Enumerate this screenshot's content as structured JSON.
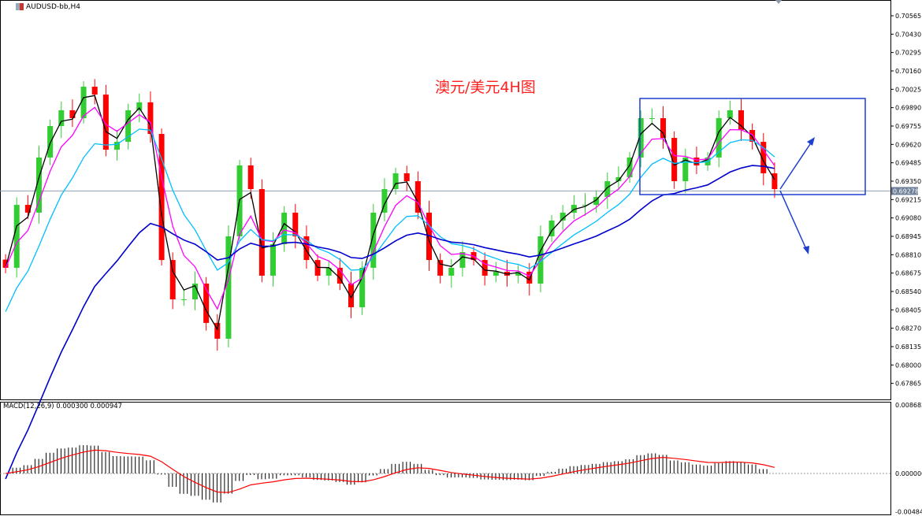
{
  "window": {
    "title": "AUDUSD-bb,H4",
    "icon": "chart-window-icon"
  },
  "annotation": "澳元/美元4H图",
  "colors": {
    "bull": "#32cd32",
    "bear": "#ff0000",
    "ma_fast": "#000000",
    "ma_mid": "#ff00ff",
    "ma_slow": "#00bfff",
    "ma_long": "#0000cd",
    "drawing": "#1e3fd0",
    "macd_signal": "#ff0000",
    "current_price_bg": "#6e7f99"
  },
  "chart_data": {
    "type": "candlestick",
    "symbol": "AUDUSD-bb",
    "timeframe": "H4",
    "ylim": [
      0.678,
      0.7062
    ],
    "y_ticks": [
      "0.70565",
      "0.70430",
      "0.70295",
      "0.70160",
      "0.70025",
      "0.69890",
      "0.69755",
      "0.69620",
      "0.69485",
      "0.69350",
      "0.69215",
      "0.69080",
      "0.68945",
      "0.68810",
      "0.68675",
      "0.68540",
      "0.68405",
      "0.68270",
      "0.68135",
      "0.68000",
      "0.67865"
    ],
    "current_price": "0.69278",
    "closes": [
      0.68714,
      0.69176,
      0.69119,
      0.69524,
      0.69755,
      0.69871,
      0.69813,
      0.70044,
      0.69986,
      0.69581,
      0.69639,
      0.69871,
      0.69929,
      0.69697,
      0.68771,
      0.68482,
      0.68482,
      0.68598,
      0.68309,
      0.68193,
      0.68945,
      0.69466,
      0.69292,
      0.68656,
      0.68887,
      0.69119,
      0.68945,
      0.68771,
      0.68656,
      0.68714,
      0.68598,
      0.68424,
      0.68714,
      0.69119,
      0.69292,
      0.69408,
      0.6935,
      0.69119,
      0.68771,
      0.68656,
      0.68714,
      0.68829,
      0.68771,
      0.68656,
      0.68685,
      0.68656,
      0.68685,
      0.68598,
      0.68945,
      0.69061,
      0.69119,
      0.69176,
      0.69176,
      0.69234,
      0.6935,
      0.69379,
      0.69524,
      0.69813,
      0.69813,
      0.69668,
      0.6935,
      0.69524,
      0.69466,
      0.69524,
      0.69813,
      0.69871,
      0.69726,
      0.69639,
      0.69408,
      0.69292
    ],
    "indicator": {
      "label": "MACD(12,26,9) 0.000300 0.000947",
      "ticks": [
        "0.008682",
        "0.000000",
        "-0.004840"
      ],
      "range": [
        -0.00484,
        0.008682
      ]
    }
  }
}
